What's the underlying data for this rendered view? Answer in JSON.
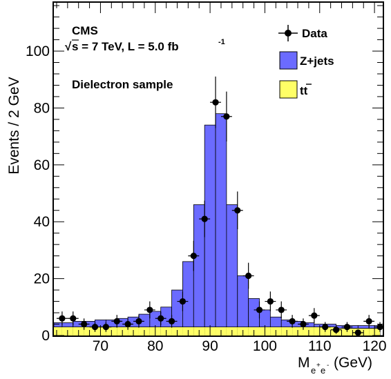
{
  "chart_data": {
    "type": "bar",
    "title": "",
    "experiment": "CMS",
    "energy_text": "s = 7 TeV, L = 5.0 fb",
    "energy_sup": "-1",
    "sample_label": "Dielectron sample",
    "xlabel": "M",
    "xlabel_sub": "e",
    "xlabel_sup1": "+",
    "xlabel_sup2": "-",
    "xlabel_unit": "(GeV)",
    "ylabel": "Events / 2 GeV",
    "xlim": [
      61.5,
      121.5
    ],
    "ylim": [
      0,
      117
    ],
    "xticks": [
      70,
      80,
      90,
      100,
      110,
      120
    ],
    "yticks": [
      0,
      20,
      40,
      60,
      80,
      100
    ],
    "bin_width": 2,
    "bin_edges_start": 62,
    "series": [
      {
        "name": "Data",
        "kind": "points",
        "color": "#000000",
        "x": [
          63,
          65,
          67,
          69,
          71,
          73,
          75,
          77,
          79,
          81,
          83,
          85,
          87,
          89,
          91,
          93,
          95,
          97,
          99,
          101,
          103,
          105,
          107,
          109,
          111,
          113,
          115,
          117,
          119,
          121
        ],
        "values": [
          6,
          6,
          4,
          3,
          3,
          5,
          4,
          5,
          9,
          6,
          5,
          12,
          28,
          41,
          82,
          77,
          44,
          21,
          9,
          12,
          9,
          5,
          4,
          7,
          3,
          2,
          3,
          1,
          5,
          3
        ]
      },
      {
        "name": "Z+jets",
        "kind": "stack",
        "color": "#6b6bff",
        "values_total": [
          4.5,
          4.5,
          5,
          5,
          5.5,
          5.5,
          6,
          6.5,
          7.5,
          8.5,
          10,
          16,
          26,
          46,
          74,
          78,
          46,
          21,
          13,
          9,
          6.5,
          5.5,
          5,
          4.5,
          4,
          4,
          3.5,
          3.5,
          3.5,
          3.5
        ]
      },
      {
        "name": "tt̄",
        "legend_label": "tt",
        "kind": "stack",
        "color": "#ffff66",
        "values": [
          3,
          3,
          3,
          3,
          3,
          3,
          3,
          3,
          3,
          3,
          3,
          3,
          3,
          3,
          3,
          3,
          3,
          3,
          3,
          3,
          3,
          3,
          3,
          3,
          3,
          3,
          2.5,
          2.5,
          2.5,
          2.5
        ]
      }
    ],
    "legend_placement": "top-right",
    "grid": false
  }
}
